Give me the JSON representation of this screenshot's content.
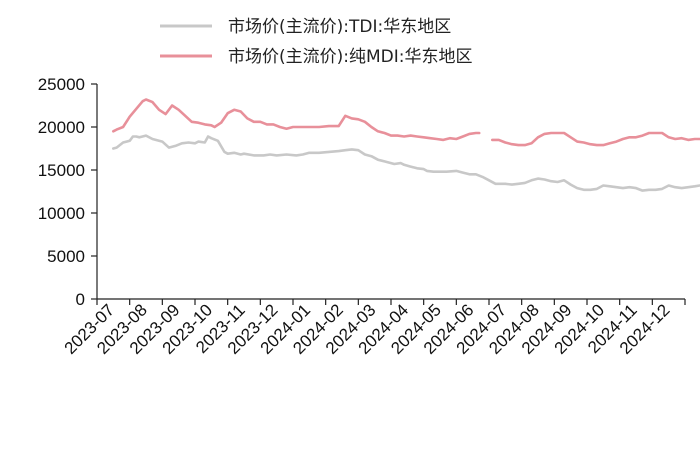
{
  "chart_data": {
    "type": "line",
    "title": "",
    "xlabel": "",
    "ylabel": "",
    "ylim": [
      0,
      25000
    ],
    "yticks": [
      "0",
      "5000",
      "10000",
      "15000",
      "20000",
      "25000"
    ],
    "categories": [
      "2023-07",
      "2023-08",
      "2023-09",
      "2023-10",
      "2023-11",
      "2023-12",
      "2024-01",
      "2024-02",
      "2024-03",
      "2024-04",
      "2024-05",
      "2024-06",
      "2024-07",
      "2024-08",
      "2024-09",
      "2024-10",
      "2024-11",
      "2024-12"
    ],
    "grid": false,
    "legend_position": "top",
    "series": [
      {
        "name": "市场价(主流价):TDI:华东地区",
        "color": "#c8c8c8",
        "x": [
          0,
          0.1,
          0.3,
          0.5,
          0.6,
          0.7,
          0.8,
          1.0,
          1.2,
          1.5,
          1.7,
          1.9,
          2.1,
          2.3,
          2.5,
          2.6,
          2.8,
          2.9,
          3.0,
          3.2,
          3.4,
          3.5,
          3.7,
          3.9,
          4.0,
          4.3,
          4.6,
          4.8,
          5.0,
          5.3,
          5.6,
          5.8,
          6.0,
          6.3,
          6.6,
          6.9,
          7.1,
          7.3,
          7.5,
          7.7,
          7.9,
          8.1,
          8.3,
          8.5,
          8.6,
          8.8,
          8.9,
          9.1,
          9.3,
          9.5,
          9.6,
          9.8,
          10.0,
          10.2,
          10.5,
          10.7,
          10.9,
          11.1,
          11.3,
          11.5,
          11.7,
          11.9,
          12.0,
          12.2,
          12.4,
          12.6,
          12.8,
          13.0,
          13.2,
          13.4,
          13.6,
          13.8,
          14.0,
          14.2,
          14.4,
          14.6,
          14.8,
          15.0,
          15.2,
          15.4,
          15.6,
          15.8,
          16.0,
          16.2,
          16.4,
          16.6,
          16.8,
          17.0,
          17.2,
          17.4,
          17.6,
          17.8,
          17.95
        ],
        "values": [
          17500,
          17600,
          18200,
          18400,
          18900,
          18900,
          18800,
          19000,
          18600,
          18300,
          17600,
          17800,
          18100,
          18200,
          18100,
          18300,
          18200,
          18900,
          18700,
          18400,
          17100,
          16900,
          17000,
          16800,
          16900,
          16700,
          16700,
          16800,
          16700,
          16800,
          16700,
          16800,
          17000,
          17000,
          17100,
          17200,
          17300,
          17400,
          17300,
          16800,
          16600,
          16200,
          16000,
          15800,
          15700,
          15800,
          15600,
          15400,
          15200,
          15100,
          14900,
          14800,
          14800,
          14800,
          14900,
          14700,
          14500,
          14500,
          14200,
          13800,
          13400,
          13400,
          13400,
          13300,
          13400,
          13500,
          13800,
          14000,
          13900,
          13700,
          13600,
          13800,
          13300,
          12900,
          12700,
          12700,
          12800,
          13200,
          13100,
          13000,
          12900,
          13000,
          12900,
          12600,
          12700,
          12700,
          12800,
          13200,
          13000,
          12900,
          13000,
          13100,
          13200
        ]
      },
      {
        "name": "市场价(主流价):纯MDI:华东地区",
        "color": "#e8909a",
        "x": [
          0,
          0.1,
          0.3,
          0.5,
          0.7,
          0.9,
          1.0,
          1.2,
          1.4,
          1.6,
          1.8,
          2.0,
          2.2,
          2.4,
          2.6,
          2.8,
          3.0,
          3.1,
          3.3,
          3.5,
          3.7,
          3.9,
          4.1,
          4.3,
          4.5,
          4.7,
          4.9,
          5.1,
          5.3,
          5.5,
          5.7,
          6.0,
          6.3,
          6.6,
          6.9,
          7.1,
          7.3,
          7.5,
          7.7,
          7.9,
          8.1,
          8.3,
          8.5,
          8.7,
          8.9,
          9.1,
          9.3,
          9.5,
          9.7,
          9.9,
          10.1,
          10.3,
          10.5,
          10.7,
          10.9,
          11.1,
          11.2
        ],
        "values": [
          19500,
          19700,
          20000,
          21200,
          22100,
          23000,
          23200,
          22900,
          22000,
          21500,
          22500,
          22000,
          21300,
          20600,
          20500,
          20300,
          20200,
          20000,
          20500,
          21600,
          22000,
          21800,
          21000,
          20600,
          20600,
          20300,
          20300,
          20000,
          19800,
          20000,
          20000,
          20000,
          20000,
          20100,
          20100,
          21300,
          21000,
          20900,
          20600,
          20000,
          19500,
          19300,
          19000,
          19000,
          18900,
          19000,
          18900,
          18800,
          18700,
          18600,
          18500,
          18700,
          18600,
          18900,
          19200,
          19300,
          19300
        ]
      },
      {
        "name": "",
        "color": "#e8909a",
        "x": [
          11.6,
          11.8,
          12.0,
          12.2,
          12.4,
          12.6,
          12.8,
          13.0,
          13.2,
          13.4,
          13.6,
          13.8,
          14.0,
          14.2,
          14.4,
          14.6,
          14.8,
          15.0,
          15.2,
          15.4,
          15.6,
          15.8,
          16.0,
          16.2,
          16.4,
          16.6,
          16.8,
          17.0,
          17.2,
          17.4,
          17.6,
          17.8,
          17.95
        ],
        "values": [
          18500,
          18500,
          18200,
          18000,
          17900,
          17900,
          18100,
          18800,
          19200,
          19300,
          19300,
          19300,
          18800,
          18300,
          18200,
          18000,
          17900,
          17900,
          18100,
          18300,
          18600,
          18800,
          18800,
          19000,
          19300,
          19300,
          19300,
          18800,
          18600,
          18700,
          18500,
          18600,
          18600
        ]
      }
    ]
  }
}
